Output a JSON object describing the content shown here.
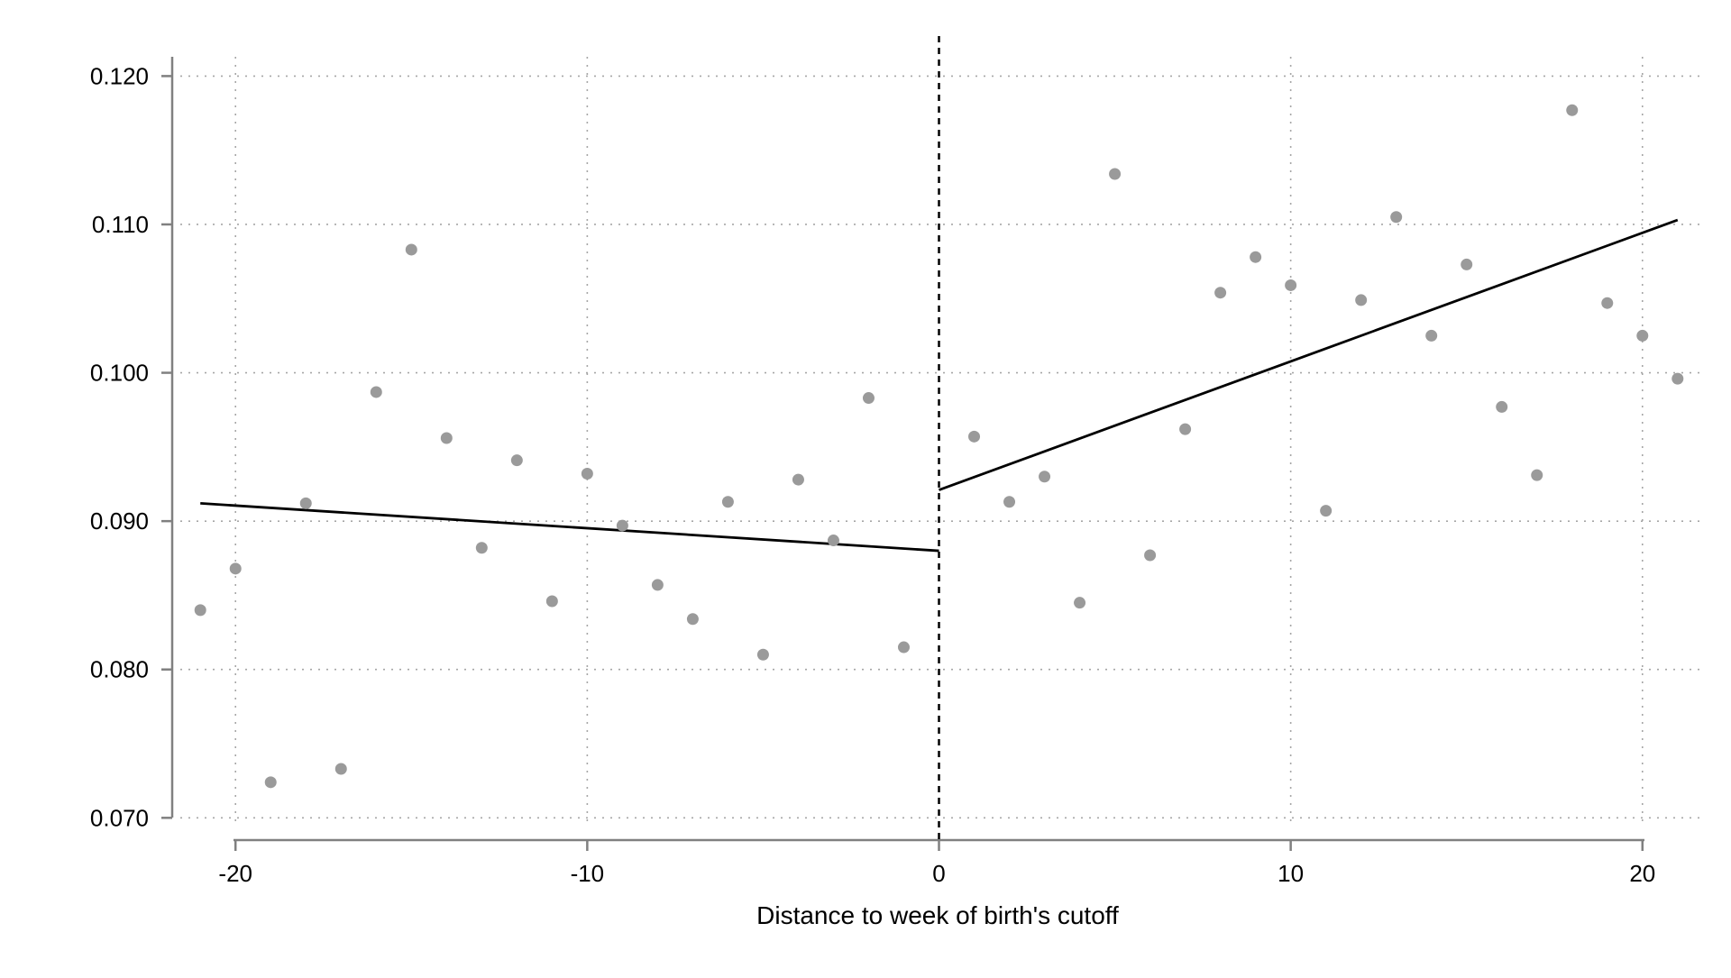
{
  "chart_data": {
    "type": "scatter",
    "title": "",
    "xlabel": "Distance to week of birth's cutoff",
    "ylabel": "",
    "xlim": [
      -21.8,
      21.8
    ],
    "ylim": [
      0.0685,
      0.1213
    ],
    "grid": true,
    "x_ticks": [
      -20,
      -10,
      0,
      10,
      20
    ],
    "y_ticks": [
      0.07,
      0.08,
      0.09,
      0.1,
      0.11,
      0.12
    ],
    "x_tick_labels": [
      "-20",
      "-10",
      "0",
      "10",
      "20"
    ],
    "y_tick_labels": [
      "0.070",
      "0.080",
      "0.090",
      "0.100",
      "0.110",
      "0.120"
    ],
    "cutoff": 0,
    "points": [
      {
        "x": -21,
        "y": 0.084
      },
      {
        "x": -20,
        "y": 0.0868
      },
      {
        "x": -19,
        "y": 0.0724
      },
      {
        "x": -18,
        "y": 0.0912
      },
      {
        "x": -17,
        "y": 0.0733
      },
      {
        "x": -16,
        "y": 0.0987
      },
      {
        "x": -15,
        "y": 0.1083
      },
      {
        "x": -14,
        "y": 0.0956
      },
      {
        "x": -13,
        "y": 0.0882
      },
      {
        "x": -12,
        "y": 0.0941
      },
      {
        "x": -11,
        "y": 0.0846
      },
      {
        "x": -10,
        "y": 0.0932
      },
      {
        "x": -9,
        "y": 0.0897
      },
      {
        "x": -8,
        "y": 0.0857
      },
      {
        "x": -7,
        "y": 0.0834
      },
      {
        "x": -6,
        "y": 0.0913
      },
      {
        "x": -5,
        "y": 0.081
      },
      {
        "x": -4,
        "y": 0.0928
      },
      {
        "x": -3,
        "y": 0.0887
      },
      {
        "x": -2,
        "y": 0.0983
      },
      {
        "x": -1,
        "y": 0.0815
      },
      {
        "x": 1,
        "y": 0.0957
      },
      {
        "x": 2,
        "y": 0.0913
      },
      {
        "x": 3,
        "y": 0.093
      },
      {
        "x": 4,
        "y": 0.0845
      },
      {
        "x": 5,
        "y": 0.1134
      },
      {
        "x": 6,
        "y": 0.0877
      },
      {
        "x": 7,
        "y": 0.0962
      },
      {
        "x": 8,
        "y": 0.1054
      },
      {
        "x": 9,
        "y": 0.1078
      },
      {
        "x": 10,
        "y": 0.1059
      },
      {
        "x": 11,
        "y": 0.0907
      },
      {
        "x": 12,
        "y": 0.1049
      },
      {
        "x": 13,
        "y": 0.1105
      },
      {
        "x": 14,
        "y": 0.1025
      },
      {
        "x": 15,
        "y": 0.1073
      },
      {
        "x": 16,
        "y": 0.0977
      },
      {
        "x": 17,
        "y": 0.0931
      },
      {
        "x": 18,
        "y": 0.1177
      },
      {
        "x": 19,
        "y": 0.1047
      },
      {
        "x": 20,
        "y": 0.1025
      },
      {
        "x": 21,
        "y": 0.0996
      }
    ],
    "fit_lines": [
      {
        "x": [
          -21,
          0
        ],
        "y": [
          0.0912,
          0.088
        ]
      },
      {
        "x": [
          0,
          21
        ],
        "y": [
          0.0921,
          0.1103
        ]
      }
    ],
    "colors": {
      "points": "#9a9a9a",
      "lines": "#000000",
      "axis": "#808080",
      "grid": "#a6a6a6"
    }
  }
}
